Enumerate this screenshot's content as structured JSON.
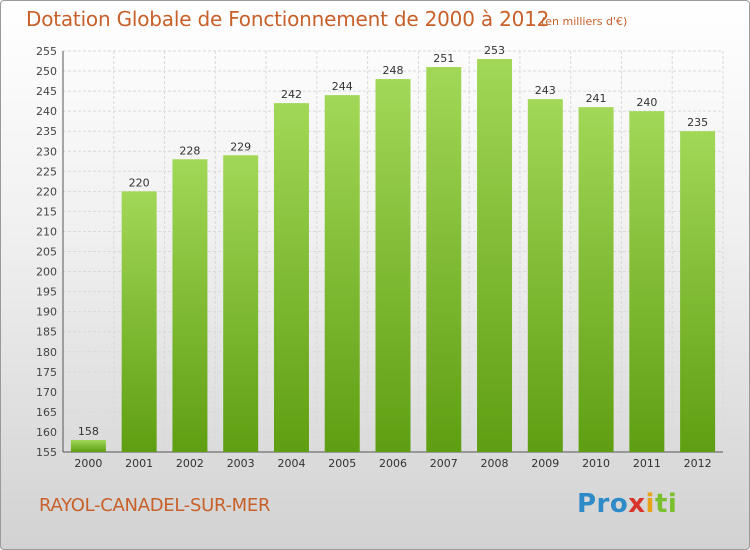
{
  "header": {
    "title": "Dotation Globale de Fonctionnement de 2000 à 2012",
    "unit": "(en milliers d'€)"
  },
  "footer": {
    "commune": "RAYOL-CANADEL-SUR-MER",
    "logo": [
      "Pro",
      "x",
      "i",
      "ti"
    ]
  },
  "colors": {
    "title": "#c8602a",
    "bar_light": "#9fd552",
    "bar_dark": "#5f9e12",
    "grid": "#d9d9d9"
  },
  "chart_data": {
    "type": "bar",
    "title": "Dotation Globale de Fonctionnement de 2000 à 2012",
    "xlabel": "",
    "ylabel": "",
    "categories": [
      "2000",
      "2001",
      "2002",
      "2003",
      "2004",
      "2005",
      "2006",
      "2007",
      "2008",
      "2009",
      "2010",
      "2011",
      "2012"
    ],
    "values": [
      158,
      220,
      228,
      229,
      242,
      244,
      248,
      251,
      253,
      243,
      241,
      240,
      235
    ],
    "ylim": [
      155,
      255
    ],
    "yticks": [
      155,
      160,
      165,
      170,
      175,
      180,
      185,
      190,
      195,
      200,
      205,
      210,
      215,
      220,
      225,
      230,
      235,
      240,
      245,
      250,
      255
    ],
    "grid": true,
    "data_labels": true
  }
}
